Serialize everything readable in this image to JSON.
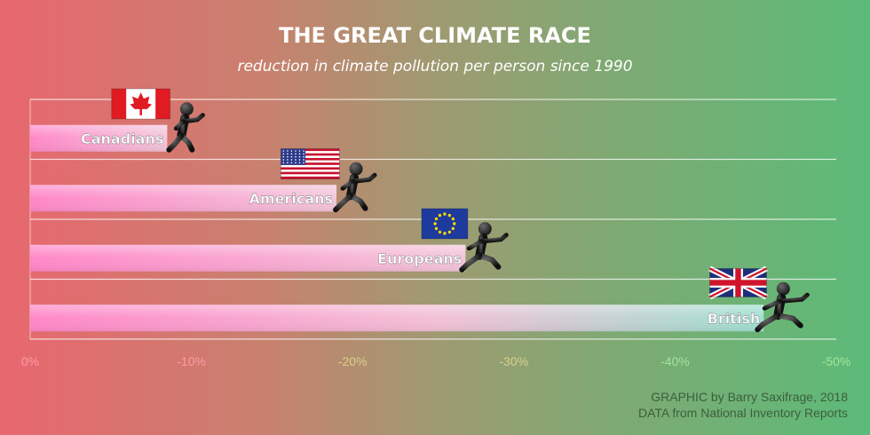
{
  "chart_data": {
    "type": "bar",
    "orientation": "horizontal",
    "title": "THE GREAT CLIMATE RACE",
    "subtitle": "reduction in climate pollution per person since 1990",
    "categories": [
      "Canadians",
      "Americans",
      "Europeans",
      "British"
    ],
    "values": [
      -8.5,
      -19,
      -27,
      -45.5
    ],
    "flags": [
      "canada-flag",
      "usa-flag",
      "eu-flag",
      "uk-flag"
    ],
    "xlim": [
      0,
      -50
    ],
    "ticks": [
      0,
      -10,
      -20,
      -30,
      -40,
      -50
    ],
    "tick_labels": [
      "0%",
      "-10%",
      "-20%",
      "-30%",
      "-40%",
      "-50%"
    ],
    "grid": true,
    "colors": {
      "bar_start": "#ff88c8",
      "bar_end": "#f5c4dc",
      "bar_end_last": "#a8e0d4"
    }
  },
  "credits": {
    "graphic": "GRAPHIC by Barry Saxifrage, 2018",
    "data": "DATA from National Inventory Reports"
  }
}
